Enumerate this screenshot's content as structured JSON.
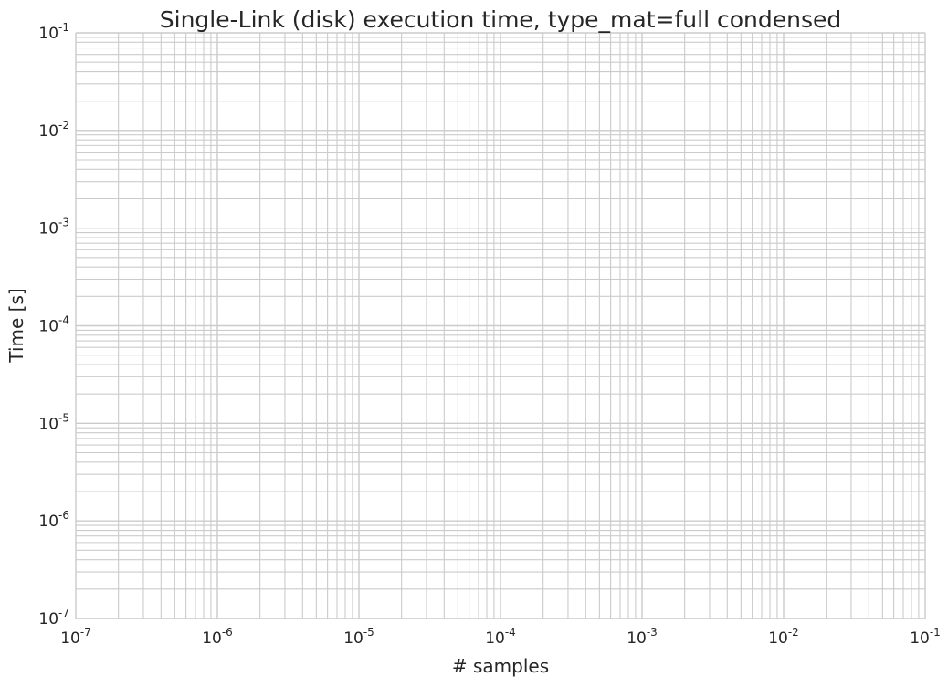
{
  "chart_data": {
    "type": "line",
    "title": "Single-Link (disk) execution time, type_mat=full condensed",
    "xlabel": "# samples",
    "ylabel": "Time [s]",
    "x_scale": "log",
    "y_scale": "log",
    "xlim": [
      1e-07,
      0.1
    ],
    "ylim": [
      1e-07,
      0.1
    ],
    "grid": true,
    "legend": "none",
    "series": [],
    "x_ticks": [
      {
        "base": "10",
        "exp": "-7"
      },
      {
        "base": "10",
        "exp": "-6"
      },
      {
        "base": "10",
        "exp": "-5"
      },
      {
        "base": "10",
        "exp": "-4"
      },
      {
        "base": "10",
        "exp": "-3"
      },
      {
        "base": "10",
        "exp": "-2"
      },
      {
        "base": "10",
        "exp": "-1"
      }
    ],
    "y_ticks": [
      {
        "base": "10",
        "exp": "-7"
      },
      {
        "base": "10",
        "exp": "-6"
      },
      {
        "base": "10",
        "exp": "-5"
      },
      {
        "base": "10",
        "exp": "-4"
      },
      {
        "base": "10",
        "exp": "-3"
      },
      {
        "base": "10",
        "exp": "-2"
      },
      {
        "base": "10",
        "exp": "-1"
      }
    ],
    "colors": {
      "grid": "#cbcbcb",
      "text": "#262626",
      "background": "#ffffff"
    }
  }
}
